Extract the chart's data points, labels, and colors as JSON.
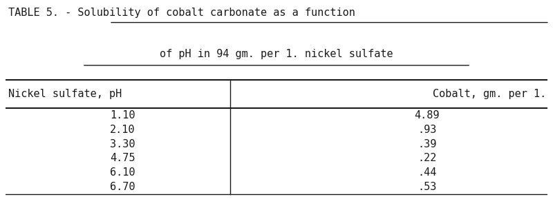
{
  "title_line1": "TABLE 5. - Solubility of cobalt carbonate as a function",
  "title_line2": "of pH in 94 gm. per 1. nickel sulfate",
  "col1_header": "Nickel sulfate, pH",
  "col2_header": "Cobalt, gm. per 1.",
  "ph_values": [
    "1.10",
    "2.10",
    "3.30",
    "4.75",
    "6.10",
    "6.70"
  ],
  "cobalt_values": [
    "4.89",
    ".93",
    ".39",
    ".22",
    ".44",
    ".53"
  ],
  "bg_color": "#ffffff",
  "text_color": "#1a1a1a",
  "font_family": "monospace",
  "title_fontsize": 11.0,
  "header_fontsize": 11.0,
  "data_fontsize": 11.0,
  "figsize": [
    8.0,
    2.89
  ],
  "dpi": 100
}
